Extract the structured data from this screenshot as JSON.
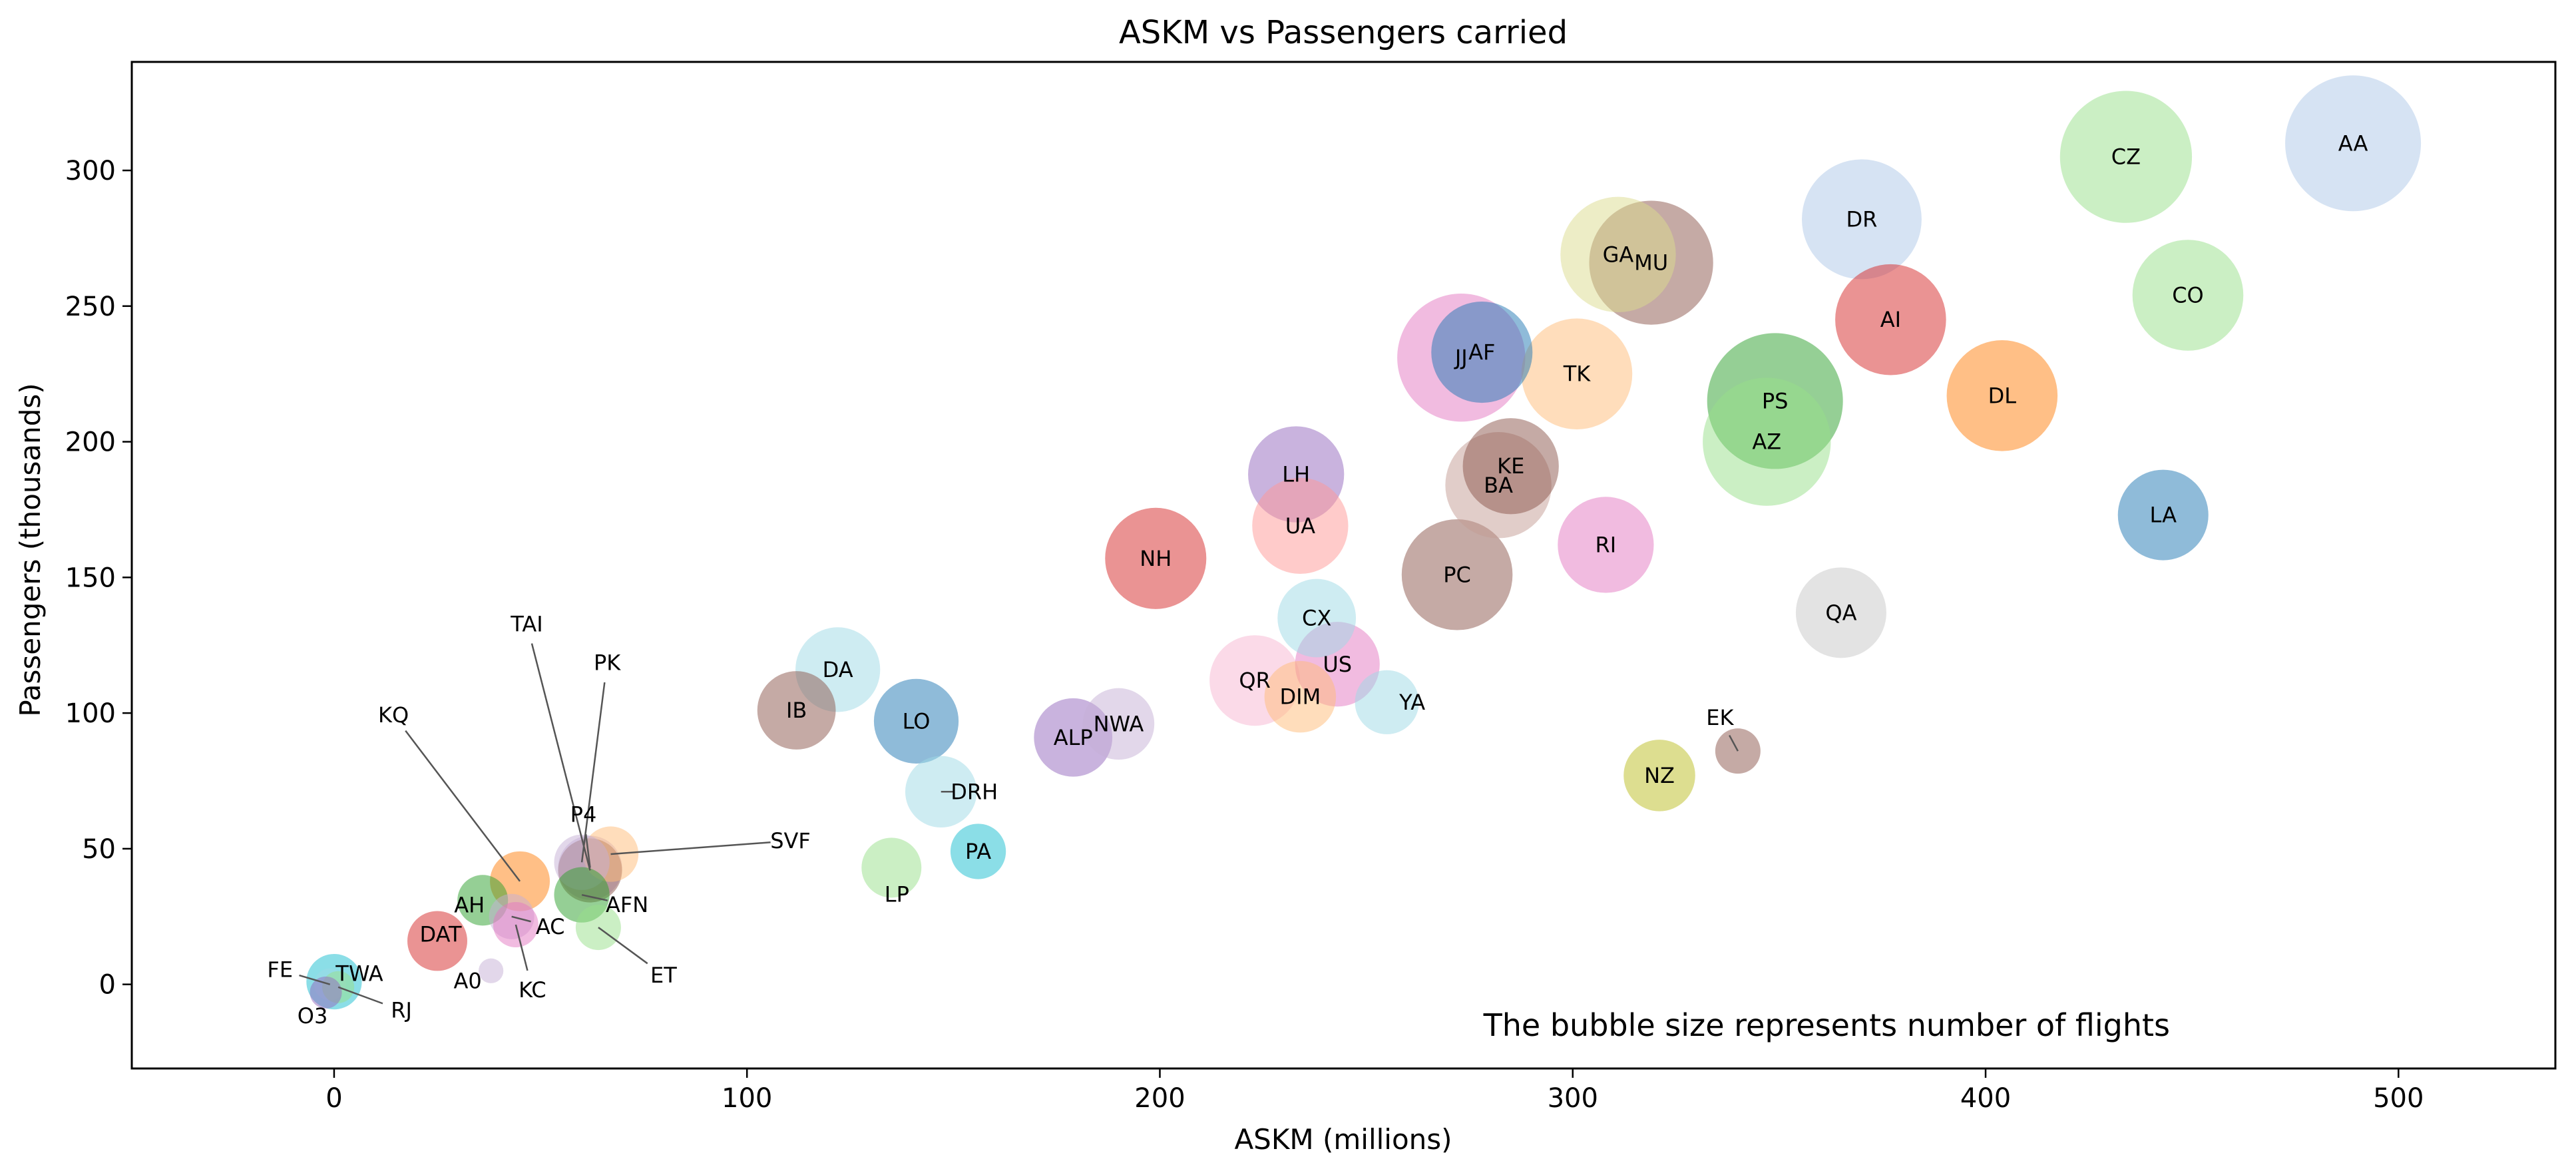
{
  "chart_data": {
    "type": "scatter",
    "title": "ASKM vs Passengers carried",
    "xlabel": "ASKM (millions)",
    "ylabel": "Passengers (thousands)",
    "xlim": [
      -49,
      538
    ],
    "ylim": [
      -31,
      340
    ],
    "x_ticks": [
      0,
      100,
      200,
      300,
      400,
      500
    ],
    "y_ticks": [
      0,
      50,
      100,
      150,
      200,
      250,
      300
    ],
    "grid": false,
    "legend": "none",
    "annotation": "The bubble size represents number of flights",
    "points": [
      {
        "label": "AA",
        "x": 489,
        "y": 310,
        "flights": 900,
        "color": "#aec7e8"
      },
      {
        "label": "CZ",
        "x": 434,
        "y": 305,
        "flights": 850,
        "color": "#98df8a"
      },
      {
        "label": "DR",
        "x": 370,
        "y": 282,
        "flights": 700,
        "color": "#aec7e8"
      },
      {
        "label": "CO",
        "x": 449,
        "y": 254,
        "flights": 600,
        "color": "#98df8a"
      },
      {
        "label": "GA",
        "x": 311,
        "y": 269,
        "flights": 650,
        "color": "#dbdb8d"
      },
      {
        "label": "MU",
        "x": 319,
        "y": 266,
        "flights": 750,
        "color": "#8c564b"
      },
      {
        "label": "AI",
        "x": 377,
        "y": 245,
        "flights": 600,
        "color": "#d62728"
      },
      {
        "label": "DL",
        "x": 404,
        "y": 217,
        "flights": 600,
        "color": "#ff7f0e"
      },
      {
        "label": "PS",
        "x": 349,
        "y": 215,
        "flights": 900,
        "color": "#2ca02c"
      },
      {
        "label": "AZ",
        "x": 347,
        "y": 200,
        "flights": 800,
        "color": "#98df8a"
      },
      {
        "label": "JJ",
        "x": 273,
        "y": 231,
        "flights": 800,
        "color": "#e377c2"
      },
      {
        "label": "AF",
        "x": 278,
        "y": 233,
        "flights": 500,
        "color": "#1f77b4"
      },
      {
        "label": "TK",
        "x": 301,
        "y": 225,
        "flights": 600,
        "color": "#ffbb78"
      },
      {
        "label": "KE",
        "x": 285,
        "y": 191,
        "flights": 450,
        "color": "#8c564b"
      },
      {
        "label": "BA",
        "x": 282,
        "y": 184,
        "flights": 550,
        "color": "#c49c94"
      },
      {
        "label": "LA",
        "x": 443,
        "y": 173,
        "flights": 400,
        "color": "#1f77b4"
      },
      {
        "label": "LH",
        "x": 233,
        "y": 188,
        "flights": 450,
        "color": "#9467bd"
      },
      {
        "label": "UA",
        "x": 234,
        "y": 169,
        "flights": 450,
        "color": "#ff9896"
      },
      {
        "label": "RI",
        "x": 308,
        "y": 162,
        "flights": 450,
        "color": "#e377c2"
      },
      {
        "label": "NH",
        "x": 199,
        "y": 157,
        "flights": 500,
        "color": "#d62728"
      },
      {
        "label": "PC",
        "x": 272,
        "y": 151,
        "flights": 600,
        "color": "#8c564b"
      },
      {
        "label": "QA",
        "x": 365,
        "y": 137,
        "flights": 400,
        "color": "#c7c7c7"
      },
      {
        "label": "CX",
        "x": 238,
        "y": 135,
        "flights": 300,
        "color": "#9edae5"
      },
      {
        "label": "US",
        "x": 243,
        "y": 118,
        "flights": 350,
        "color": "#e377c2"
      },
      {
        "label": "DA",
        "x": 122,
        "y": 116,
        "flights": 350,
        "color": "#9edae5"
      },
      {
        "label": "QR",
        "x": 223,
        "y": 112,
        "flights": 400,
        "color": "#f7b6d2"
      },
      {
        "label": "DIM",
        "x": 234,
        "y": 106,
        "flights": 250,
        "color": "#ffbb78"
      },
      {
        "label": "YA",
        "x": 255,
        "y": 104,
        "flights": 200,
        "color": "#9edae5"
      },
      {
        "label": "IB",
        "x": 112,
        "y": 101,
        "flights": 300,
        "color": "#8c564b"
      },
      {
        "label": "LO",
        "x": 141,
        "y": 97,
        "flights": 350,
        "color": "#1f77b4"
      },
      {
        "label": "NWA",
        "x": 190,
        "y": 96,
        "flights": 250,
        "color": "#c5b0d5"
      },
      {
        "label": "ALP",
        "x": 179,
        "y": 91,
        "flights": 300,
        "color": "#9467bd"
      },
      {
        "label": "EK",
        "x": 340,
        "y": 86,
        "flights": 100,
        "color": "#8c564b"
      },
      {
        "label": "NZ",
        "x": 321,
        "y": 77,
        "flights": 250,
        "color": "#bcbd22"
      },
      {
        "label": "DRH",
        "x": 147,
        "y": 71,
        "flights": 250,
        "color": "#9edae5"
      },
      {
        "label": "PA",
        "x": 156,
        "y": 49,
        "flights": 150,
        "color": "#17becf"
      },
      {
        "label": "LP",
        "x": 135,
        "y": 43,
        "flights": 175,
        "color": "#98df8a"
      },
      {
        "label": "SVF",
        "x": 67,
        "y": 48,
        "flights": 150,
        "color": "#ffbb78"
      },
      {
        "label": "P4",
        "x": 62,
        "y": 43,
        "flights": 200,
        "color": "#c5b0d5"
      },
      {
        "label": "PK",
        "x": 60,
        "y": 45,
        "flights": 150,
        "color": "#c5b0d5"
      },
      {
        "label": "TAI",
        "x": 62,
        "y": 42,
        "flights": 200,
        "color": "#8c564b"
      },
      {
        "label": "KQ",
        "x": 45,
        "y": 38,
        "flights": 175,
        "color": "#ff7f0e"
      },
      {
        "label": "AFN",
        "x": 60,
        "y": 33,
        "flights": 150,
        "color": "#2ca02c"
      },
      {
        "label": "AH",
        "x": 36,
        "y": 31,
        "flights": 125,
        "color": "#2ca02c"
      },
      {
        "label": "AC",
        "x": 43,
        "y": 25,
        "flights": 100,
        "color": "#c5b0d5"
      },
      {
        "label": "KC",
        "x": 44,
        "y": 22,
        "flights": 100,
        "color": "#e377c2"
      },
      {
        "label": "ET",
        "x": 64,
        "y": 21,
        "flights": 100,
        "color": "#98df8a"
      },
      {
        "label": "DAT",
        "x": 25,
        "y": 16,
        "flights": 175,
        "color": "#d62728"
      },
      {
        "label": "A0",
        "x": 38,
        "y": 5,
        "flights": 30,
        "color": "#c5b0d5"
      },
      {
        "label": "TWA",
        "x": 0,
        "y": 1,
        "flights": 150,
        "color": "#17becf"
      },
      {
        "label": "FE",
        "x": -1,
        "y": 0,
        "flights": 50,
        "color": "#9edae5"
      },
      {
        "label": "RJ",
        "x": 1,
        "y": -1,
        "flights": 50,
        "color": "#98df8a"
      },
      {
        "label": "O3",
        "x": -2,
        "y": -3,
        "flights": 50,
        "color": "#9467bd"
      }
    ]
  }
}
